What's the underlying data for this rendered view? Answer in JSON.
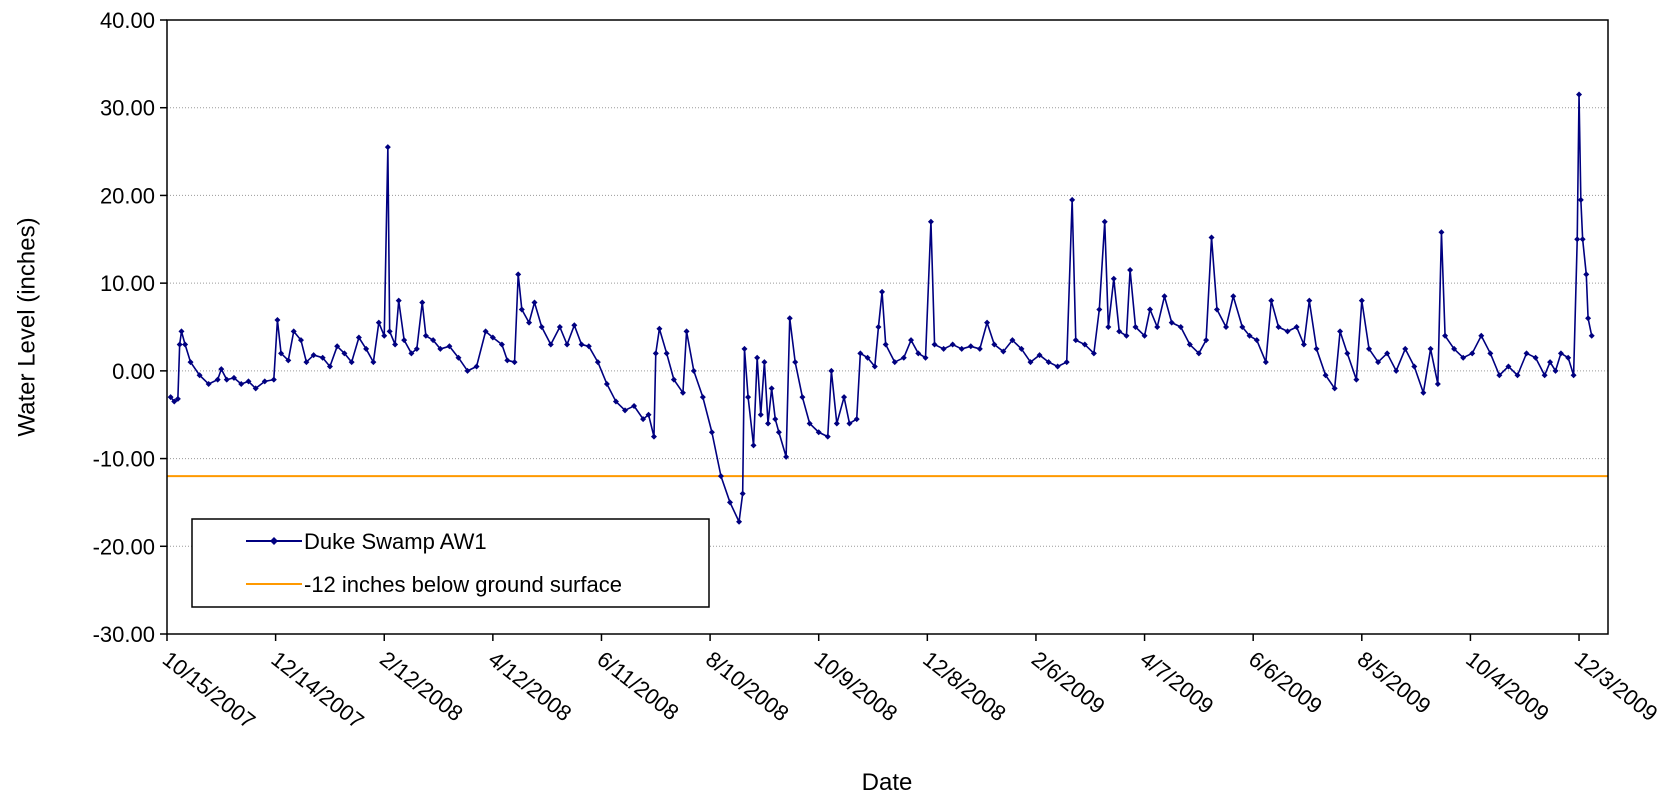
{
  "chart_data": {
    "type": "line",
    "xlabel": "Date",
    "ylabel": "Water Level (inches)",
    "ylim": [
      -30,
      40
    ],
    "xlim": [
      "10/15/2007",
      "12/19/2009"
    ],
    "x_ticks": [
      "10/15/2007",
      "12/14/2007",
      "2/12/2008",
      "4/12/2008",
      "6/11/2008",
      "8/10/2008",
      "10/9/2008",
      "12/8/2008",
      "2/6/2009",
      "4/7/2009",
      "6/6/2009",
      "8/5/2009",
      "10/4/2009",
      "12/3/2009"
    ],
    "y_ticks": [
      "40.00",
      "30.00",
      "20.00",
      "10.00",
      "0.00",
      "-10.00",
      "-20.00",
      "-30.00"
    ],
    "grid": true,
    "legend_position": "bottom-left",
    "series": [
      {
        "name": "Duke Swamp AW1",
        "color": "#000080",
        "marker": "diamond",
        "points": [
          [
            "10/17/2007",
            -3.0
          ],
          [
            "10/19/2007",
            -3.5
          ],
          [
            "10/21/2007",
            -3.2
          ],
          [
            "10/22/2007",
            3.0
          ],
          [
            "10/23/2007",
            4.5
          ],
          [
            "10/25/2007",
            3.0
          ],
          [
            "10/28/2007",
            1.0
          ],
          [
            "11/2/2007",
            -0.5
          ],
          [
            "11/7/2007",
            -1.5
          ],
          [
            "11/12/2007",
            -1.0
          ],
          [
            "11/14/2007",
            0.2
          ],
          [
            "11/17/2007",
            -1.0
          ],
          [
            "11/21/2007",
            -0.8
          ],
          [
            "11/25/2007",
            -1.5
          ],
          [
            "11/29/2007",
            -1.2
          ],
          [
            "12/3/2007",
            -2.0
          ],
          [
            "12/8/2007",
            -1.2
          ],
          [
            "12/13/2007",
            -1.0
          ],
          [
            "12/15/2007",
            5.8
          ],
          [
            "12/17/2007",
            2.0
          ],
          [
            "12/21/2007",
            1.2
          ],
          [
            "12/24/2007",
            4.5
          ],
          [
            "12/28/2007",
            3.5
          ],
          [
            "12/31/2007",
            1.0
          ],
          [
            "1/4/2008",
            1.8
          ],
          [
            "1/9/2008",
            1.5
          ],
          [
            "1/13/2008",
            0.5
          ],
          [
            "1/17/2008",
            2.8
          ],
          [
            "1/21/2008",
            2.0
          ],
          [
            "1/25/2008",
            1.0
          ],
          [
            "1/29/2008",
            3.8
          ],
          [
            "2/2/2008",
            2.5
          ],
          [
            "2/6/2008",
            1.0
          ],
          [
            "2/9/2008",
            5.5
          ],
          [
            "2/12/2008",
            4.0
          ],
          [
            "2/14/2008",
            25.5
          ],
          [
            "2/15/2008",
            4.5
          ],
          [
            "2/18/2008",
            3.0
          ],
          [
            "2/20/2008",
            8.0
          ],
          [
            "2/23/2008",
            3.5
          ],
          [
            "2/27/2008",
            2.0
          ],
          [
            "3/1/2008",
            2.5
          ],
          [
            "3/4/2008",
            7.8
          ],
          [
            "3/6/2008",
            4.0
          ],
          [
            "3/10/2008",
            3.5
          ],
          [
            "3/14/2008",
            2.5
          ],
          [
            "3/19/2008",
            2.8
          ],
          [
            "3/24/2008",
            1.5
          ],
          [
            "3/29/2008",
            0.0
          ],
          [
            "4/3/2008",
            0.5
          ],
          [
            "4/8/2008",
            4.5
          ],
          [
            "4/12/2008",
            3.8
          ],
          [
            "4/17/2008",
            3.0
          ],
          [
            "4/20/2008",
            1.2
          ],
          [
            "4/24/2008",
            1.0
          ],
          [
            "4/26/2008",
            11.0
          ],
          [
            "4/28/2008",
            7.0
          ],
          [
            "5/2/2008",
            5.5
          ],
          [
            "5/5/2008",
            7.8
          ],
          [
            "5/9/2008",
            5.0
          ],
          [
            "5/14/2008",
            3.0
          ],
          [
            "5/19/2008",
            5.0
          ],
          [
            "5/23/2008",
            3.0
          ],
          [
            "5/27/2008",
            5.2
          ],
          [
            "5/31/2008",
            3.0
          ],
          [
            "6/4/2008",
            2.8
          ],
          [
            "6/9/2008",
            1.0
          ],
          [
            "6/14/2008",
            -1.5
          ],
          [
            "6/19/2008",
            -3.5
          ],
          [
            "6/24/2008",
            -4.5
          ],
          [
            "6/29/2008",
            -4.0
          ],
          [
            "7/4/2008",
            -5.5
          ],
          [
            "7/7/2008",
            -5.0
          ],
          [
            "7/10/2008",
            -7.5
          ],
          [
            "7/11/2008",
            2.0
          ],
          [
            "7/13/2008",
            4.8
          ],
          [
            "7/17/2008",
            2.0
          ],
          [
            "7/21/2008",
            -1.0
          ],
          [
            "7/26/2008",
            -2.5
          ],
          [
            "7/28/2008",
            4.5
          ],
          [
            "8/1/2008",
            0.0
          ],
          [
            "8/6/2008",
            -3.0
          ],
          [
            "8/11/2008",
            -7.0
          ],
          [
            "8/16/2008",
            -12.0
          ],
          [
            "8/21/2008",
            -15.0
          ],
          [
            "8/26/2008",
            -17.2
          ],
          [
            "8/28/2008",
            -14.0
          ],
          [
            "8/29/2008",
            2.5
          ],
          [
            "8/31/2008",
            -3.0
          ],
          [
            "9/3/2008",
            -8.5
          ],
          [
            "9/5/2008",
            1.5
          ],
          [
            "9/7/2008",
            -5.0
          ],
          [
            "9/9/2008",
            1.0
          ],
          [
            "9/11/2008",
            -6.0
          ],
          [
            "9/13/2008",
            -2.0
          ],
          [
            "9/15/2008",
            -5.5
          ],
          [
            "9/17/2008",
            -7.0
          ],
          [
            "9/21/2008",
            -9.8
          ],
          [
            "9/23/2008",
            6.0
          ],
          [
            "9/26/2008",
            1.0
          ],
          [
            "9/30/2008",
            -3.0
          ],
          [
            "10/4/2008",
            -6.0
          ],
          [
            "10/9/2008",
            -7.0
          ],
          [
            "10/14/2008",
            -7.5
          ],
          [
            "10/16/2008",
            0.0
          ],
          [
            "10/19/2008",
            -6.0
          ],
          [
            "10/23/2008",
            -3.0
          ],
          [
            "10/26/2008",
            -6.0
          ],
          [
            "10/30/2008",
            -5.5
          ],
          [
            "11/1/2008",
            2.0
          ],
          [
            "11/5/2008",
            1.5
          ],
          [
            "11/9/2008",
            0.5
          ],
          [
            "11/11/2008",
            5.0
          ],
          [
            "11/13/2008",
            9.0
          ],
          [
            "11/15/2008",
            3.0
          ],
          [
            "11/20/2008",
            1.0
          ],
          [
            "11/25/2008",
            1.5
          ],
          [
            "11/29/2008",
            3.5
          ],
          [
            "12/3/2008",
            2.0
          ],
          [
            "12/7/2008",
            1.5
          ],
          [
            "12/10/2008",
            17.0
          ],
          [
            "12/12/2008",
            3.0
          ],
          [
            "12/17/2008",
            2.5
          ],
          [
            "12/22/2008",
            3.0
          ],
          [
            "12/27/2008",
            2.5
          ],
          [
            "1/1/2009",
            2.8
          ],
          [
            "1/6/2009",
            2.5
          ],
          [
            "1/10/2009",
            5.5
          ],
          [
            "1/14/2009",
            3.0
          ],
          [
            "1/19/2009",
            2.2
          ],
          [
            "1/24/2009",
            3.5
          ],
          [
            "1/29/2009",
            2.5
          ],
          [
            "2/3/2009",
            1.0
          ],
          [
            "2/8/2009",
            1.8
          ],
          [
            "2/13/2009",
            1.0
          ],
          [
            "2/18/2009",
            0.5
          ],
          [
            "2/23/2009",
            1.0
          ],
          [
            "2/26/2009",
            19.5
          ],
          [
            "2/28/2009",
            3.5
          ],
          [
            "3/5/2009",
            3.0
          ],
          [
            "3/10/2009",
            2.0
          ],
          [
            "3/13/2009",
            7.0
          ],
          [
            "3/16/2009",
            17.0
          ],
          [
            "3/18/2009",
            5.0
          ],
          [
            "3/21/2009",
            10.5
          ],
          [
            "3/24/2009",
            4.5
          ],
          [
            "3/28/2009",
            4.0
          ],
          [
            "3/30/2009",
            11.5
          ],
          [
            "4/2/2009",
            5.0
          ],
          [
            "4/7/2009",
            4.0
          ],
          [
            "4/10/2009",
            7.0
          ],
          [
            "4/14/2009",
            5.0
          ],
          [
            "4/18/2009",
            8.5
          ],
          [
            "4/22/2009",
            5.5
          ],
          [
            "4/27/2009",
            5.0
          ],
          [
            "5/2/2009",
            3.0
          ],
          [
            "5/7/2009",
            2.0
          ],
          [
            "5/11/2009",
            3.5
          ],
          [
            "5/14/2009",
            15.2
          ],
          [
            "5/17/2009",
            7.0
          ],
          [
            "5/22/2009",
            5.0
          ],
          [
            "5/26/2009",
            8.5
          ],
          [
            "5/31/2009",
            5.0
          ],
          [
            "6/4/2009",
            4.0
          ],
          [
            "6/8/2009",
            3.5
          ],
          [
            "6/13/2009",
            1.0
          ],
          [
            "6/16/2009",
            8.0
          ],
          [
            "6/20/2009",
            5.0
          ],
          [
            "6/25/2009",
            4.5
          ],
          [
            "6/30/2009",
            5.0
          ],
          [
            "7/4/2009",
            3.0
          ],
          [
            "7/7/2009",
            8.0
          ],
          [
            "7/11/2009",
            2.5
          ],
          [
            "7/16/2009",
            -0.5
          ],
          [
            "7/21/2009",
            -2.0
          ],
          [
            "7/24/2009",
            4.5
          ],
          [
            "7/28/2009",
            2.0
          ],
          [
            "8/2/2009",
            -1.0
          ],
          [
            "8/5/2009",
            8.0
          ],
          [
            "8/9/2009",
            2.5
          ],
          [
            "8/14/2009",
            1.0
          ],
          [
            "8/19/2009",
            2.0
          ],
          [
            "8/24/2009",
            0.0
          ],
          [
            "8/29/2009",
            2.5
          ],
          [
            "9/3/2009",
            0.5
          ],
          [
            "9/8/2009",
            -2.5
          ],
          [
            "9/12/2009",
            2.5
          ],
          [
            "9/16/2009",
            -1.5
          ],
          [
            "9/18/2009",
            15.8
          ],
          [
            "9/20/2009",
            4.0
          ],
          [
            "9/25/2009",
            2.5
          ],
          [
            "9/30/2009",
            1.5
          ],
          [
            "10/5/2009",
            2.0
          ],
          [
            "10/10/2009",
            4.0
          ],
          [
            "10/15/2009",
            2.0
          ],
          [
            "10/20/2009",
            -0.5
          ],
          [
            "10/25/2009",
            0.5
          ],
          [
            "10/30/2009",
            -0.5
          ],
          [
            "11/4/2009",
            2.0
          ],
          [
            "11/9/2009",
            1.5
          ],
          [
            "11/14/2009",
            -0.5
          ],
          [
            "11/17/2009",
            1.0
          ],
          [
            "11/20/2009",
            0.0
          ],
          [
            "11/23/2009",
            2.0
          ],
          [
            "11/27/2009",
            1.5
          ],
          [
            "11/30/2009",
            -0.5
          ],
          [
            "12/2/2009",
            15.0
          ],
          [
            "12/3/2009",
            31.5
          ],
          [
            "12/4/2009",
            19.5
          ],
          [
            "12/5/2009",
            15.0
          ],
          [
            "12/7/2009",
            11.0
          ],
          [
            "12/8/2009",
            6.0
          ],
          [
            "12/10/2009",
            4.0
          ]
        ]
      },
      {
        "name": "-12 inches below ground surface",
        "color": "#FF9900",
        "marker": "none",
        "y": -12
      }
    ]
  }
}
